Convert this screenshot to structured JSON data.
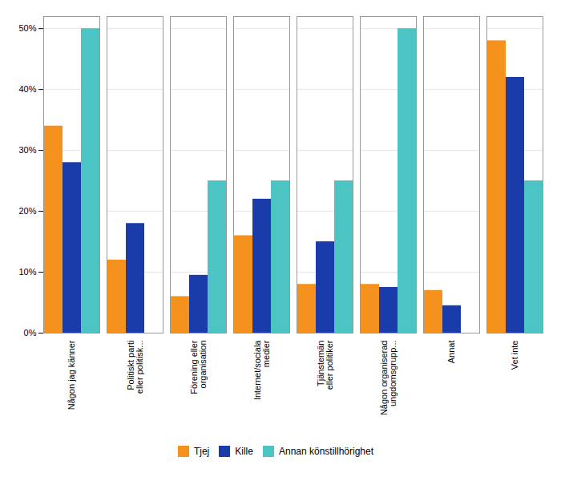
{
  "chart_data": {
    "type": "bar",
    "categories": [
      "Någon jag känner",
      "Politiskt parti\neller politisk...",
      "Förening eller\norganisation",
      "Internet/sociala\nmedier",
      "Tjänstemän\neller politiker",
      "Någon organiserad\nungdomsgrupp...",
      "Annat",
      "Vet inte"
    ],
    "series": [
      {
        "name": "Tjej",
        "color": "#F5921E",
        "values": [
          34,
          12,
          6,
          16,
          8,
          8,
          7,
          48
        ]
      },
      {
        "name": "Kille",
        "color": "#1A3BAA",
        "values": [
          28,
          18,
          9.5,
          22,
          15,
          7.5,
          4.5,
          42
        ]
      },
      {
        "name": "Annan könstillhörighet",
        "color": "#4DC4C4",
        "values": [
          50,
          0,
          25,
          25,
          25,
          50,
          0,
          25
        ]
      }
    ],
    "ylim": [
      0,
      52
    ],
    "yticks": [
      {
        "value": 0,
        "label": "0%"
      },
      {
        "value": 10,
        "label": "10%"
      },
      {
        "value": 20,
        "label": "20%"
      },
      {
        "value": 30,
        "label": "30%"
      },
      {
        "value": 40,
        "label": "40%"
      },
      {
        "value": 50,
        "label": "50%"
      }
    ],
    "grid": true,
    "legend": "bottom"
  }
}
